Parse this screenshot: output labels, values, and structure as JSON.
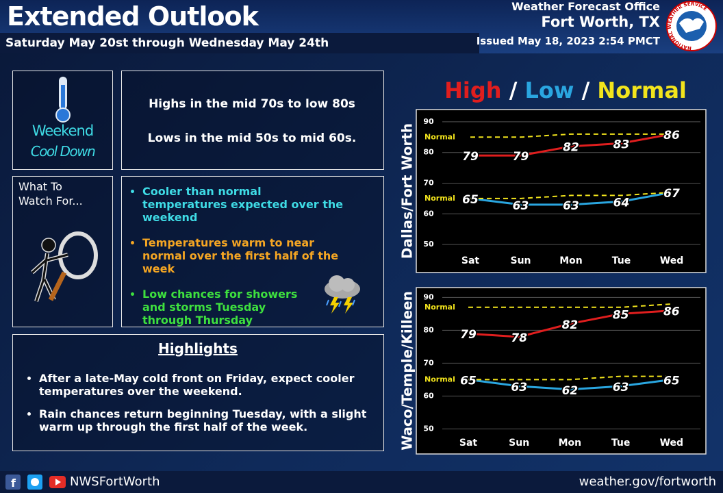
{
  "header": {
    "title": "Extended Outlook",
    "subtitle": "Saturday May 20st through Wednesday May 24th",
    "office": "Weather Forecast Office",
    "location": "Fort Worth, TX",
    "issued": "Issued May 18, 2023 2:54 PMCT",
    "logo": "NATIONAL WEATHER SERVICE"
  },
  "summary": {
    "headline": [
      "Weekend",
      "Cool Down"
    ],
    "lines": [
      "Highs in the mid 70s to low 80s",
      "Lows in the mid 50s to mid 60s."
    ]
  },
  "watch": {
    "title": "What To Watch For...",
    "bullets": [
      {
        "text": "Cooler than normal temperatures expected over the weekend",
        "color": "#3fdce6"
      },
      {
        "text": "Temperatures warm to near normal over the first half of the week",
        "color": "#f5a623"
      },
      {
        "text": "Low chances for showers and storms Tuesday through Thursday",
        "color": "#3ee03e"
      }
    ]
  },
  "highlights": {
    "title": "Highlights",
    "bullets": [
      "After a late-May cold front on Friday, expect cooler temperatures over the weekend.",
      "Rain chances return beginning Tuesday, with a slight warm up through the first half of the week."
    ]
  },
  "footer": {
    "handle": "NWSFortWorth",
    "url": "weather.gov/fortworth"
  },
  "chart_data": [
    {
      "type": "line",
      "title": "Dallas/Fort Worth",
      "categories": [
        "Sat",
        "Sun",
        "Mon",
        "Tue",
        "Wed"
      ],
      "ylim": [
        48,
        94
      ],
      "yticks": [
        50,
        60,
        70,
        80,
        90
      ],
      "grid": true,
      "series": [
        {
          "name": "High",
          "color": "#e01e1e",
          "values": [
            79,
            79,
            82,
            83,
            86
          ]
        },
        {
          "name": "Low",
          "color": "#2aa6e0",
          "values": [
            65,
            63,
            63,
            64,
            67
          ]
        },
        {
          "name": "Normal",
          "color": "#f2e41c",
          "dashed": true,
          "values": [
            85,
            85,
            86,
            86,
            86
          ]
        },
        {
          "name": "Normal",
          "color": "#f2e41c",
          "dashed": true,
          "values": [
            65,
            65,
            66,
            66,
            67
          ]
        }
      ]
    },
    {
      "type": "line",
      "title": "Waco/Temple/Killeen",
      "categories": [
        "Sat",
        "Sun",
        "Mon",
        "Tue",
        "Wed"
      ],
      "ylim": [
        48,
        93
      ],
      "yticks": [
        50,
        60,
        70,
        80,
        90
      ],
      "grid": true,
      "series": [
        {
          "color": "#e01e1e",
          "values": [
            79,
            78,
            82,
            85,
            86
          ]
        },
        {
          "color": "#2aa6e0",
          "values": [
            65,
            63,
            62,
            63,
            65
          ]
        },
        {
          "name": "Normal",
          "color": "#f2e41c",
          "dashed": true,
          "values": [
            87,
            87,
            87,
            87,
            88
          ]
        },
        {
          "name": "Normal",
          "color": "#f2e41c",
          "dashed": true,
          "values": [
            65,
            65,
            65,
            66,
            66
          ]
        }
      ]
    }
  ]
}
